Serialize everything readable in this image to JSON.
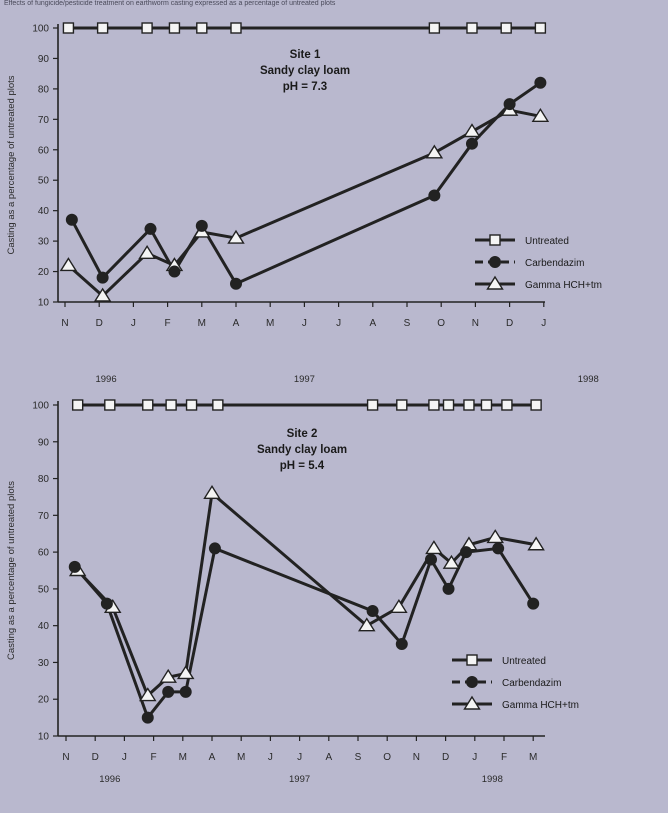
{
  "figure": {
    "caption": "Effects of fungicide/pesticide treatment on earthworm casting expressed as a percentage of untreated plots"
  },
  "colors": {
    "background": "#b9b8ce",
    "line": "#222222",
    "marker_fill": "#f4f4f4"
  },
  "chart_data": [
    {
      "type": "line",
      "title": [
        "Site 1",
        "Sandy clay loam",
        "pH = 7.3"
      ],
      "ylabel": "Casting as a percentage of untreated plots",
      "xlabel": "",
      "ylim": [
        10,
        100
      ],
      "yticks": [
        10,
        20,
        30,
        40,
        50,
        60,
        70,
        80,
        90,
        100
      ],
      "x_months": [
        "N",
        "D",
        "J",
        "F",
        "M",
        "A",
        "M",
        "J",
        "J",
        "A",
        "S",
        "O",
        "N",
        "D",
        "J"
      ],
      "x_years": [
        {
          "label": "1996",
          "month_index": 1.2
        },
        {
          "label": "1997",
          "month_index": 7
        },
        {
          "label": "1998",
          "month_index": 15.3
        }
      ],
      "legend_position": "right",
      "series": [
        {
          "name": "Untreated",
          "marker": "square",
          "dash": "solid",
          "x": [
            0.1,
            1.1,
            2.4,
            3.2,
            4.0,
            5.0,
            10.8,
            11.9,
            12.9,
            13.9
          ],
          "values": [
            100,
            100,
            100,
            100,
            100,
            100,
            100,
            100,
            100,
            100
          ]
        },
        {
          "name": "Carbendazim",
          "marker": "circle",
          "dash": "dashed",
          "x": [
            0.2,
            1.1,
            2.5,
            3.2,
            4.0,
            5.0,
            10.8,
            11.9,
            13.0,
            13.9
          ],
          "values": [
            37,
            18,
            34,
            20,
            35,
            16,
            45,
            62,
            75,
            82
          ]
        },
        {
          "name": "Gamma HCH+tm",
          "marker": "triangle",
          "dash": "solid",
          "x": [
            0.1,
            1.1,
            2.4,
            3.2,
            4.0,
            5.0,
            10.8,
            11.9,
            13.0,
            13.9
          ],
          "values": [
            22,
            12,
            26,
            22,
            33,
            31,
            59,
            66,
            73,
            71
          ]
        }
      ]
    },
    {
      "type": "line",
      "title": [
        "Site 2",
        "Sandy clay loam",
        "pH = 5.4"
      ],
      "ylabel": "Casting as a percentage of untreated plots",
      "xlabel": "",
      "ylim": [
        10,
        100
      ],
      "yticks": [
        10,
        20,
        30,
        40,
        50,
        60,
        70,
        80,
        90,
        100
      ],
      "x_months": [
        "N",
        "D",
        "J",
        "F",
        "M",
        "A",
        "M",
        "J",
        "J",
        "A",
        "S",
        "O",
        "N",
        "D",
        "J",
        "F",
        "M"
      ],
      "x_years": [
        {
          "label": "1996",
          "month_index": 1.5
        },
        {
          "label": "1997",
          "month_index": 8
        },
        {
          "label": "1998",
          "month_index": 14.6
        }
      ],
      "legend_position": "right",
      "series": [
        {
          "name": "Untreated",
          "marker": "square",
          "dash": "solid",
          "x": [
            0.4,
            1.5,
            2.8,
            3.6,
            4.3,
            5.2,
            10.5,
            11.5,
            12.6,
            13.1,
            13.8,
            14.4,
            15.1,
            16.1
          ],
          "values": [
            100,
            100,
            100,
            100,
            100,
            100,
            100,
            100,
            100,
            100,
            100,
            100,
            100,
            100
          ]
        },
        {
          "name": "Carbendazim",
          "marker": "circle",
          "dash": "dashed",
          "x": [
            0.3,
            1.4,
            2.8,
            3.5,
            4.1,
            5.1,
            10.5,
            11.5,
            12.5,
            13.1,
            13.7,
            14.8,
            16.0
          ],
          "values": [
            56,
            46,
            15,
            22,
            22,
            61,
            44,
            35,
            58,
            50,
            60,
            61,
            46
          ]
        },
        {
          "name": "Gamma HCH+tm",
          "marker": "triangle",
          "dash": "solid",
          "x": [
            0.4,
            1.6,
            2.8,
            3.5,
            4.1,
            5.0,
            10.3,
            11.4,
            12.6,
            13.2,
            13.8,
            14.7,
            16.1
          ],
          "values": [
            55,
            45,
            21,
            26,
            27,
            76,
            40,
            45,
            61,
            57,
            62,
            64,
            62
          ]
        }
      ]
    }
  ]
}
